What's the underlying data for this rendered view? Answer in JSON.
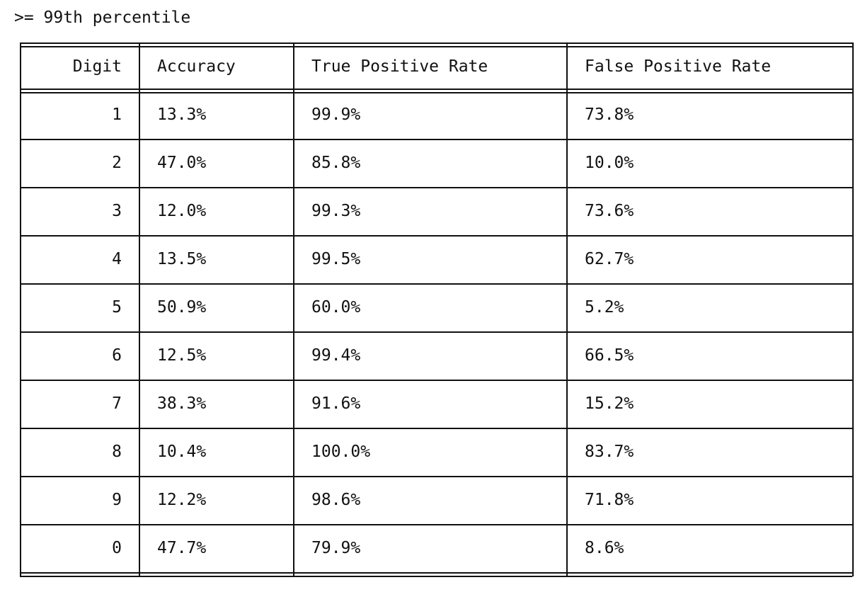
{
  "caption": ">= 99th percentile",
  "table": {
    "headers": [
      "Digit",
      "Accuracy",
      "True Positive Rate",
      "False Positive Rate"
    ],
    "rows": [
      [
        "1",
        "13.3%",
        "99.9%",
        "73.8%"
      ],
      [
        "2",
        "47.0%",
        "85.8%",
        "10.0%"
      ],
      [
        "3",
        "12.0%",
        "99.3%",
        "73.6%"
      ],
      [
        "4",
        "13.5%",
        "99.5%",
        "62.7%"
      ],
      [
        "5",
        "50.9%",
        "60.0%",
        "5.2%"
      ],
      [
        "6",
        "12.5%",
        "99.4%",
        "66.5%"
      ],
      [
        "7",
        "38.3%",
        "91.6%",
        "15.2%"
      ],
      [
        "8",
        "10.4%",
        "100.0%",
        "83.7%"
      ],
      [
        "9",
        "12.2%",
        "98.6%",
        "71.8%"
      ],
      [
        "0",
        "47.7%",
        "79.9%",
        "8.6%"
      ]
    ]
  }
}
